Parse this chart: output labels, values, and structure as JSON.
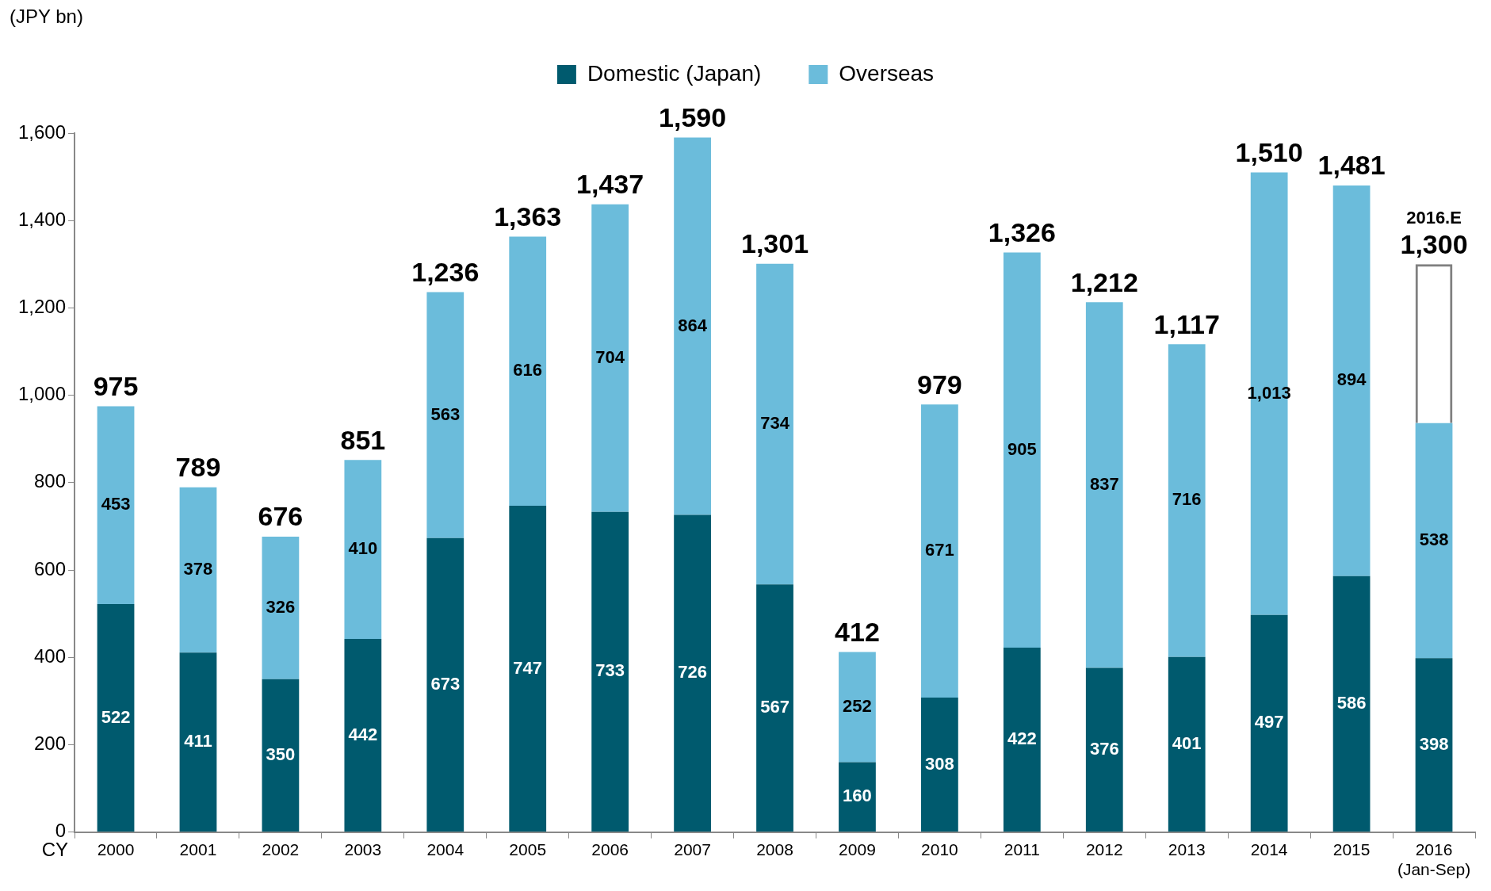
{
  "chart_data": {
    "type": "bar",
    "stacked": true,
    "ylabel": "(JPY bn)",
    "xlabel": "CY",
    "categories": [
      "2000",
      "2001",
      "2002",
      "2003",
      "2004",
      "2005",
      "2006",
      "2007",
      "2008",
      "2009",
      "2010",
      "2011",
      "2012",
      "2013",
      "2014",
      "2015",
      "2016\n(Jan-Sep)"
    ],
    "series": [
      {
        "name": "Domestic (Japan)",
        "color": "#005a6e",
        "values": [
          522,
          411,
          350,
          442,
          673,
          747,
          733,
          726,
          567,
          160,
          308,
          422,
          376,
          401,
          497,
          586,
          398
        ]
      },
      {
        "name": "Overseas",
        "color": "#6bbcdb",
        "values": [
          453,
          378,
          326,
          410,
          563,
          616,
          704,
          864,
          734,
          252,
          671,
          905,
          837,
          716,
          1013,
          894,
          538
        ],
        "value_labels": [
          "453",
          "378",
          "326",
          "410",
          "563",
          "616",
          "704",
          "864",
          "734",
          "252",
          "671",
          "905",
          "837",
          "716",
          "1,013",
          "894",
          "538"
        ]
      },
      {
        "color": "#808080",
        "line_style": "dashed",
        "values": [
          null,
          null,
          null,
          null,
          null,
          null,
          null,
          null,
          null,
          null,
          null,
          null,
          null,
          null,
          null,
          null,
          364
        ],
        "value_labels": [
          null,
          null,
          null,
          null,
          null,
          null,
          null,
          null,
          null,
          null,
          null,
          null,
          null,
          null,
          null,
          null,
          null
        ]
      }
    ],
    "data_labels": true,
    "totals": [
      "975",
      "789",
      "676",
      "851",
      "1,236",
      "1,363",
      "1,437",
      "1,590",
      "1,301",
      "412",
      "979",
      "1,326",
      "1,212",
      "1,117",
      "1,510",
      "1,481",
      "1,300"
    ],
    "annotations": [
      "2016.E"
    ],
    "ylim": [
      0,
      1600
    ],
    "yticks": [
      0,
      200,
      400,
      600,
      800,
      {
        "value": 1000,
        "label": "1,000"
      },
      {
        "value": 1200,
        "label": "1,200"
      },
      {
        "value": 1400,
        "label": "1,400"
      },
      {
        "value": 1600,
        "label": "1,600"
      }
    ],
    "grid": false,
    "legend": "top"
  }
}
